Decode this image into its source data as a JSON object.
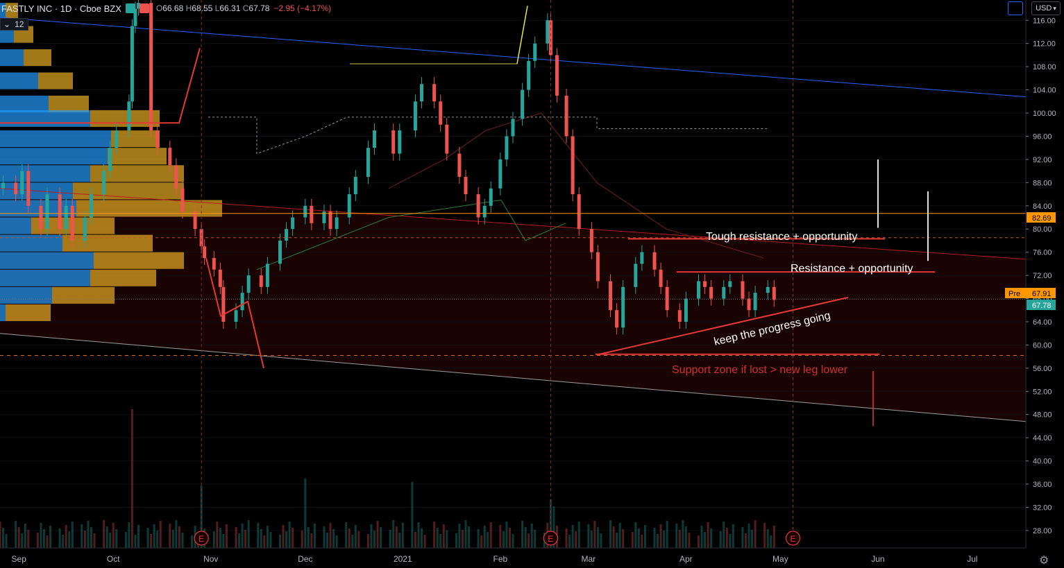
{
  "header": {
    "symbol": "FASTLY INC · 1D · Cboe BZX",
    "open_label": "O",
    "open": "66.68",
    "high_label": "H",
    "high": "68.55",
    "low_label": "L",
    "low": "66.31",
    "close_label": "C",
    "close": "67.78",
    "change": "−2.95 (−4.17%)"
  },
  "volume_profile_button": {
    "count": "12"
  },
  "currency": "USD",
  "price_tags": {
    "level_82": "82.69",
    "pre_label": "Pre",
    "pre_value": "67.91",
    "last": "67.78"
  },
  "annotations": {
    "tough_resistance": "Tough resistance + opportunity",
    "resistance": "Resistance + opportunity",
    "keep_progress": "keep the progress going",
    "support_zone": "Support zone if lost > new leg lower"
  },
  "earnings_marker": "E",
  "colors": {
    "up": "#26a69a",
    "down": "#ef5350",
    "bg": "#000000",
    "grid": "#1e222d",
    "trend_red": "#e53935",
    "trend_blue": "#2862ff",
    "vp_blue": "#2196f3",
    "vp_yellow": "#e0a722",
    "accent_orange": "#ff9800"
  },
  "chart_data": {
    "type": "candlestick",
    "title": "",
    "y_ticks": [
      28,
      32,
      36,
      40,
      44,
      48,
      52,
      56,
      60,
      64,
      68,
      72,
      76,
      80,
      84,
      88,
      92,
      96,
      100,
      104,
      108,
      112,
      116
    ],
    "ylim": [
      25,
      119.5
    ],
    "x_ticks": [
      "Sep",
      "Oct",
      "Nov",
      "Dec",
      "2021",
      "Feb",
      "Mar",
      "Apr",
      "May",
      "Jun",
      "Jul"
    ],
    "x_tick_dates": [
      "2020-09-01",
      "2020-10-01",
      "2020-11-01",
      "2020-12-01",
      "2021-01-01",
      "2021-02-01",
      "2021-03-01",
      "2021-04-01",
      "2021-05-01",
      "2021-06-01",
      "2021-07-01"
    ],
    "xlim": [
      "2020-08-26",
      "2021-07-18"
    ],
    "earnings_dates": [
      "2020-10-29",
      "2021-02-17",
      "2021-05-05"
    ],
    "horizontal_levels": [
      82.69,
      78.5,
      58.2
    ],
    "candles_close": [
      [
        "2020-08-27",
        88
      ],
      [
        "2020-08-31",
        86
      ],
      [
        "2020-09-02",
        90
      ],
      [
        "2020-09-04",
        84
      ],
      [
        "2020-09-08",
        80
      ],
      [
        "2020-09-10",
        86
      ],
      [
        "2020-09-14",
        80
      ],
      [
        "2020-09-16",
        84
      ],
      [
        "2020-09-18",
        78
      ],
      [
        "2020-09-22",
        82
      ],
      [
        "2020-09-24",
        86
      ],
      [
        "2020-09-28",
        90
      ],
      [
        "2020-09-30",
        94
      ],
      [
        "2020-10-02",
        97
      ],
      [
        "2020-10-06",
        102
      ],
      [
        "2020-10-07",
        115
      ],
      [
        "2020-10-08",
        118
      ],
      [
        "2020-10-09",
        119
      ],
      [
        "2020-10-13",
        97
      ],
      [
        "2020-10-15",
        94
      ],
      [
        "2020-10-19",
        91
      ],
      [
        "2020-10-21",
        87
      ],
      [
        "2020-10-23",
        83
      ],
      [
        "2020-10-27",
        80
      ],
      [
        "2020-10-29",
        77
      ],
      [
        "2020-10-30",
        75
      ],
      [
        "2020-11-02",
        73
      ],
      [
        "2020-11-04",
        70
      ],
      [
        "2020-11-05",
        64
      ],
      [
        "2020-11-09",
        66
      ],
      [
        "2020-11-11",
        69
      ],
      [
        "2020-11-13",
        72
      ],
      [
        "2020-11-17",
        70
      ],
      [
        "2020-11-19",
        74
      ],
      [
        "2020-11-23",
        78
      ],
      [
        "2020-11-25",
        80
      ],
      [
        "2020-11-27",
        82
      ],
      [
        "2020-12-01",
        84
      ],
      [
        "2020-12-03",
        81
      ],
      [
        "2020-12-07",
        83
      ],
      [
        "2020-12-09",
        80
      ],
      [
        "2020-12-11",
        82
      ],
      [
        "2020-12-15",
        86
      ],
      [
        "2020-12-17",
        89
      ],
      [
        "2020-12-21",
        94
      ],
      [
        "2020-12-23",
        97
      ],
      [
        "2020-12-29",
        93
      ],
      [
        "2020-12-31",
        97
      ],
      [
        "2021-01-05",
        102
      ],
      [
        "2021-01-07",
        105
      ],
      [
        "2021-01-11",
        102
      ],
      [
        "2021-01-13",
        98
      ],
      [
        "2021-01-15",
        93
      ],
      [
        "2021-01-19",
        89
      ],
      [
        "2021-01-21",
        86
      ],
      [
        "2021-01-25",
        82
      ],
      [
        "2021-01-27",
        84
      ],
      [
        "2021-01-29",
        87
      ],
      [
        "2021-02-01",
        92
      ],
      [
        "2021-02-03",
        96
      ],
      [
        "2021-02-05",
        99
      ],
      [
        "2021-02-08",
        104
      ],
      [
        "2021-02-10",
        109
      ],
      [
        "2021-02-12",
        112
      ],
      [
        "2021-02-16",
        116
      ],
      [
        "2021-02-17",
        110
      ],
      [
        "2021-02-19",
        103
      ],
      [
        "2021-02-22",
        96
      ],
      [
        "2021-02-24",
        86
      ],
      [
        "2021-02-26",
        80
      ],
      [
        "2021-03-02",
        76
      ],
      [
        "2021-03-04",
        71
      ],
      [
        "2021-03-08",
        66
      ],
      [
        "2021-03-10",
        63
      ],
      [
        "2021-03-12",
        70
      ],
      [
        "2021-03-16",
        74
      ],
      [
        "2021-03-18",
        76
      ],
      [
        "2021-03-22",
        73
      ],
      [
        "2021-03-24",
        70
      ],
      [
        "2021-03-26",
        66
      ],
      [
        "2021-03-30",
        64
      ],
      [
        "2021-04-01",
        68
      ],
      [
        "2021-04-05",
        71
      ],
      [
        "2021-04-07",
        70
      ],
      [
        "2021-04-09",
        68
      ],
      [
        "2021-04-13",
        70
      ],
      [
        "2021-04-15",
        71
      ],
      [
        "2021-04-19",
        68
      ],
      [
        "2021-04-21",
        66
      ],
      [
        "2021-04-23",
        69
      ],
      [
        "2021-04-27",
        70
      ],
      [
        "2021-04-29",
        67.78
      ]
    ],
    "volume_axis": "overlay (bottom)"
  }
}
